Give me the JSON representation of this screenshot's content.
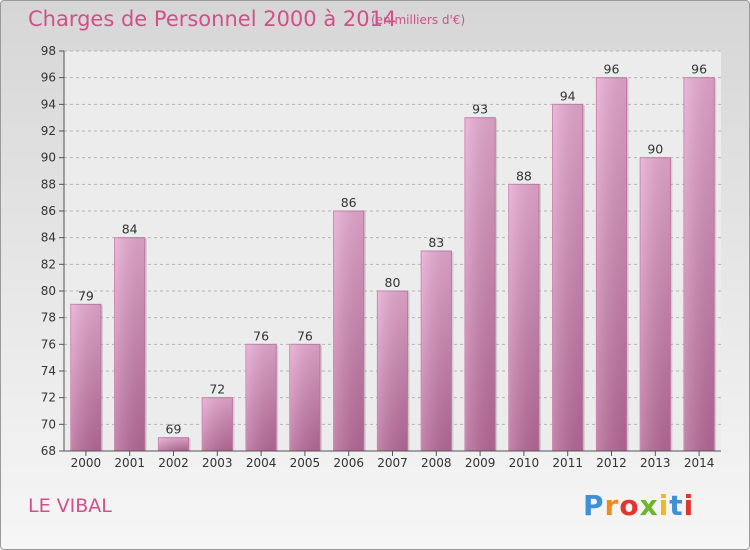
{
  "title": "Charges de Personnel 2000 à 2014",
  "subtitle": "(en milliers d'€)",
  "commune": "LE VIBAL",
  "logo": {
    "text": "Proxiti",
    "colors": [
      "#3d8fd6",
      "#f08c1e",
      "#e3342f",
      "#6cb52d",
      "#f0b81e",
      "#3d8fd6",
      "#e3342f"
    ]
  },
  "chart_data": {
    "type": "bar",
    "title": "Charges de Personnel 2000 à 2014",
    "subtitle": "(en milliers d'€)",
    "categories": [
      "2000",
      "2001",
      "2002",
      "2003",
      "2004",
      "2005",
      "2006",
      "2007",
      "2008",
      "2009",
      "2010",
      "2011",
      "2012",
      "2013",
      "2014"
    ],
    "values": [
      79,
      84,
      69,
      72,
      76,
      76,
      86,
      80,
      83,
      93,
      88,
      94,
      96,
      90,
      96
    ],
    "ylim": [
      68,
      98
    ],
    "yticks": [
      68,
      70,
      72,
      74,
      76,
      78,
      80,
      82,
      84,
      86,
      88,
      90,
      92,
      94,
      96,
      98
    ],
    "grid": true,
    "bar_color": "#d98cb6"
  }
}
